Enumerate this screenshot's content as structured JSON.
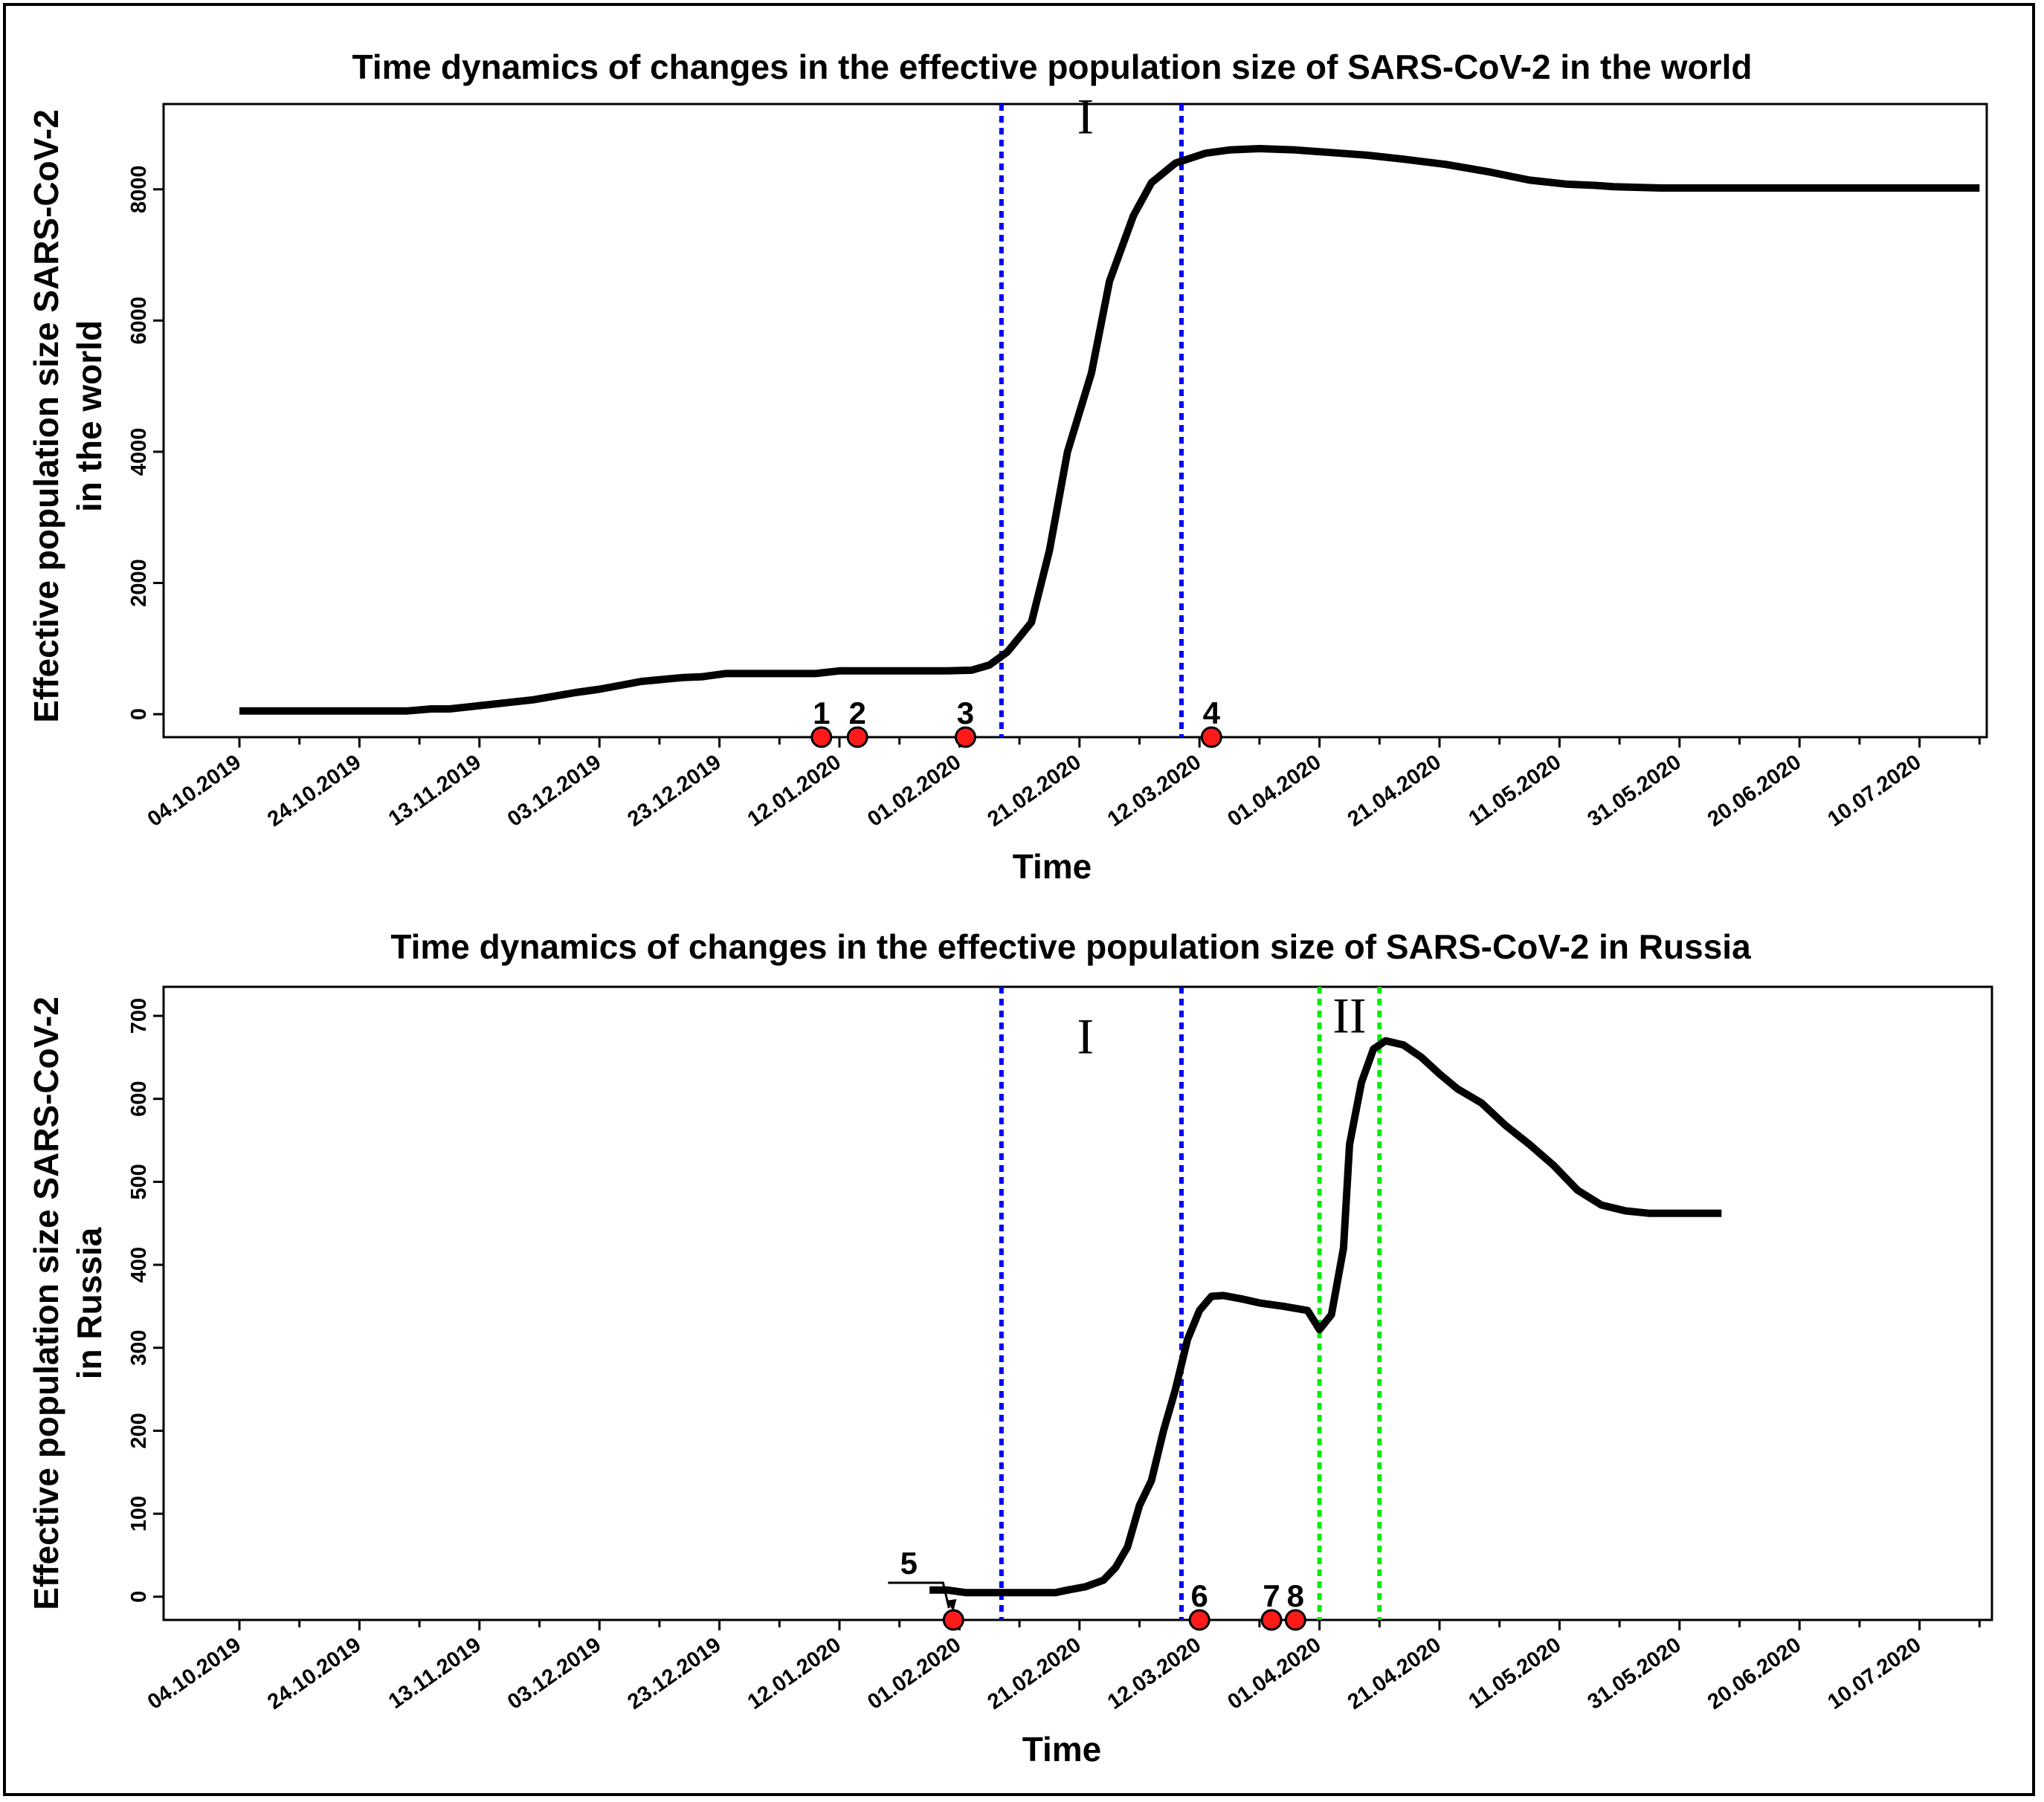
{
  "chart_data": [
    {
      "type": "line",
      "title": "Time dynamics of changes in the effective population size of SARS-CoV-2 in the world",
      "xlabel": "Time",
      "ylabel": [
        "Effective population size SARS-CoV-2",
        "in the world"
      ],
      "x_ticks": [
        "04.10.2019",
        "24.10.2019",
        "13.11.2019",
        "03.12.2019",
        "23.12.2019",
        "12.01.2020",
        "01.02.2020",
        "21.02.2020",
        "12.03.2020",
        "01.04.2020",
        "21.04.2020",
        "11.05.2020",
        "31.05.2020",
        "20.06.2020",
        "10.07.2020"
      ],
      "y_ticks": [
        0,
        2000,
        4000,
        6000,
        8000
      ],
      "ylim": [
        -350,
        9300
      ],
      "grid": false,
      "series": [
        {
          "points": [
            [
              "2019-10-04",
              50
            ],
            [
              "2019-11-01",
              50
            ],
            [
              "2019-11-05",
              80
            ],
            [
              "2019-11-08",
              80
            ],
            [
              "2019-11-15",
              150
            ],
            [
              "2019-11-22",
              220
            ],
            [
              "2019-11-29",
              330
            ],
            [
              "2019-12-03",
              380
            ],
            [
              "2019-12-10",
              500
            ],
            [
              "2019-12-17",
              560
            ],
            [
              "2019-12-20",
              570
            ],
            [
              "2019-12-24",
              620
            ],
            [
              "2020-01-08",
              620
            ],
            [
              "2020-01-12",
              660
            ],
            [
              "2020-01-30",
              660
            ],
            [
              "2020-02-03",
              670
            ],
            [
              "2020-02-06",
              750
            ],
            [
              "2020-02-09",
              950
            ],
            [
              "2020-02-13",
              1400
            ],
            [
              "2020-02-16",
              2500
            ],
            [
              "2020-02-19",
              4000
            ],
            [
              "2020-02-23",
              5200
            ],
            [
              "2020-02-26",
              6600
            ],
            [
              "2020-03-01",
              7600
            ],
            [
              "2020-03-04",
              8100
            ],
            [
              "2020-03-08",
              8400
            ],
            [
              "2020-03-13",
              8550
            ],
            [
              "2020-03-17",
              8600
            ],
            [
              "2020-03-22",
              8620
            ],
            [
              "2020-03-28",
              8600
            ],
            [
              "2020-04-03",
              8560
            ],
            [
              "2020-04-09",
              8520
            ],
            [
              "2020-04-15",
              8460
            ],
            [
              "2020-04-22",
              8380
            ],
            [
              "2020-04-29",
              8270
            ],
            [
              "2020-05-06",
              8140
            ],
            [
              "2020-05-12",
              8080
            ],
            [
              "2020-05-17",
              8060
            ],
            [
              "2020-05-20",
              8040
            ],
            [
              "2020-05-28",
              8020
            ],
            [
              "2020-06-10",
              8020
            ],
            [
              "2020-07-20",
              8020
            ]
          ]
        }
      ],
      "vertical_lines": [
        {
          "date": "2020-02-08",
          "color": "#0000ff"
        },
        {
          "date": "2020-03-09",
          "color": "#0000ff"
        }
      ],
      "region_labels": [
        {
          "text": "I",
          "date": "2020-02-22",
          "y": 8850
        }
      ],
      "events": [
        {
          "label": "1",
          "date": "2020-01-09"
        },
        {
          "label": "2",
          "date": "2020-01-15"
        },
        {
          "label": "3",
          "date": "2020-02-02"
        },
        {
          "label": "4",
          "date": "2020-03-14"
        }
      ]
    },
    {
      "type": "line",
      "title": "Time dynamics of changes in the effective population size of SARS-CoV-2 in Russia",
      "xlabel": "Time",
      "ylabel": [
        "Effective population size SARS-CoV-2",
        "in Russia"
      ],
      "x_ticks": [
        "04.10.2019",
        "24.10.2019",
        "13.11.2019",
        "03.12.2019",
        "23.12.2019",
        "12.01.2020",
        "01.02.2020",
        "21.02.2020",
        "12.03.2020",
        "01.04.2020",
        "21.04.2020",
        "11.05.2020",
        "31.05.2020",
        "20.06.2020",
        "10.07.2020"
      ],
      "y_ticks": [
        0,
        100,
        200,
        300,
        400,
        500,
        600,
        700
      ],
      "ylim": [
        -28,
        735
      ],
      "grid": false,
      "series": [
        {
          "points": [
            [
              "2020-01-27",
              8
            ],
            [
              "2020-01-30",
              8
            ],
            [
              "2020-02-02",
              5
            ],
            [
              "2020-02-17",
              5
            ],
            [
              "2020-02-19",
              8
            ],
            [
              "2020-02-22",
              12
            ],
            [
              "2020-02-25",
              20
            ],
            [
              "2020-02-27",
              35
            ],
            [
              "2020-02-29",
              60
            ],
            [
              "2020-03-02",
              110
            ],
            [
              "2020-03-04",
              140
            ],
            [
              "2020-03-06",
              200
            ],
            [
              "2020-03-08",
              250
            ],
            [
              "2020-03-10",
              310
            ],
            [
              "2020-03-12",
              345
            ],
            [
              "2020-03-14",
              362
            ],
            [
              "2020-03-16",
              363
            ],
            [
              "2020-03-19",
              359
            ],
            [
              "2020-03-22",
              354
            ],
            [
              "2020-03-26",
              350
            ],
            [
              "2020-03-30",
              345
            ],
            [
              "2020-04-01",
              322
            ],
            [
              "2020-04-03",
              340
            ],
            [
              "2020-04-05",
              420
            ],
            [
              "2020-04-06",
              545
            ],
            [
              "2020-04-08",
              620
            ],
            [
              "2020-04-10",
              660
            ],
            [
              "2020-04-12",
              670
            ],
            [
              "2020-04-15",
              665
            ],
            [
              "2020-04-18",
              650
            ],
            [
              "2020-04-21",
              630
            ],
            [
              "2020-04-24",
              612
            ],
            [
              "2020-04-28",
              595
            ],
            [
              "2020-05-02",
              568
            ],
            [
              "2020-05-06",
              545
            ],
            [
              "2020-05-10",
              520
            ],
            [
              "2020-05-14",
              490
            ],
            [
              "2020-05-18",
              472
            ],
            [
              "2020-05-22",
              465
            ],
            [
              "2020-05-26",
              462
            ],
            [
              "2020-06-07",
              462
            ]
          ]
        }
      ],
      "vertical_lines": [
        {
          "date": "2020-02-08",
          "color": "#0000ff"
        },
        {
          "date": "2020-03-09",
          "color": "#0000ff"
        },
        {
          "date": "2020-04-01",
          "color": "#00ee00"
        },
        {
          "date": "2020-04-11",
          "color": "#00ee00"
        }
      ],
      "region_labels": [
        {
          "text": "I",
          "date": "2020-02-22",
          "y": 655
        },
        {
          "text": "II",
          "date": "2020-04-06",
          "y": 680
        }
      ],
      "events": [
        {
          "label": "5",
          "date": "2020-01-31",
          "offset_label": true
        },
        {
          "label": "6",
          "date": "2020-03-12"
        },
        {
          "label": "7",
          "date": "2020-03-24"
        },
        {
          "label": "8",
          "date": "2020-03-28"
        }
      ]
    }
  ]
}
